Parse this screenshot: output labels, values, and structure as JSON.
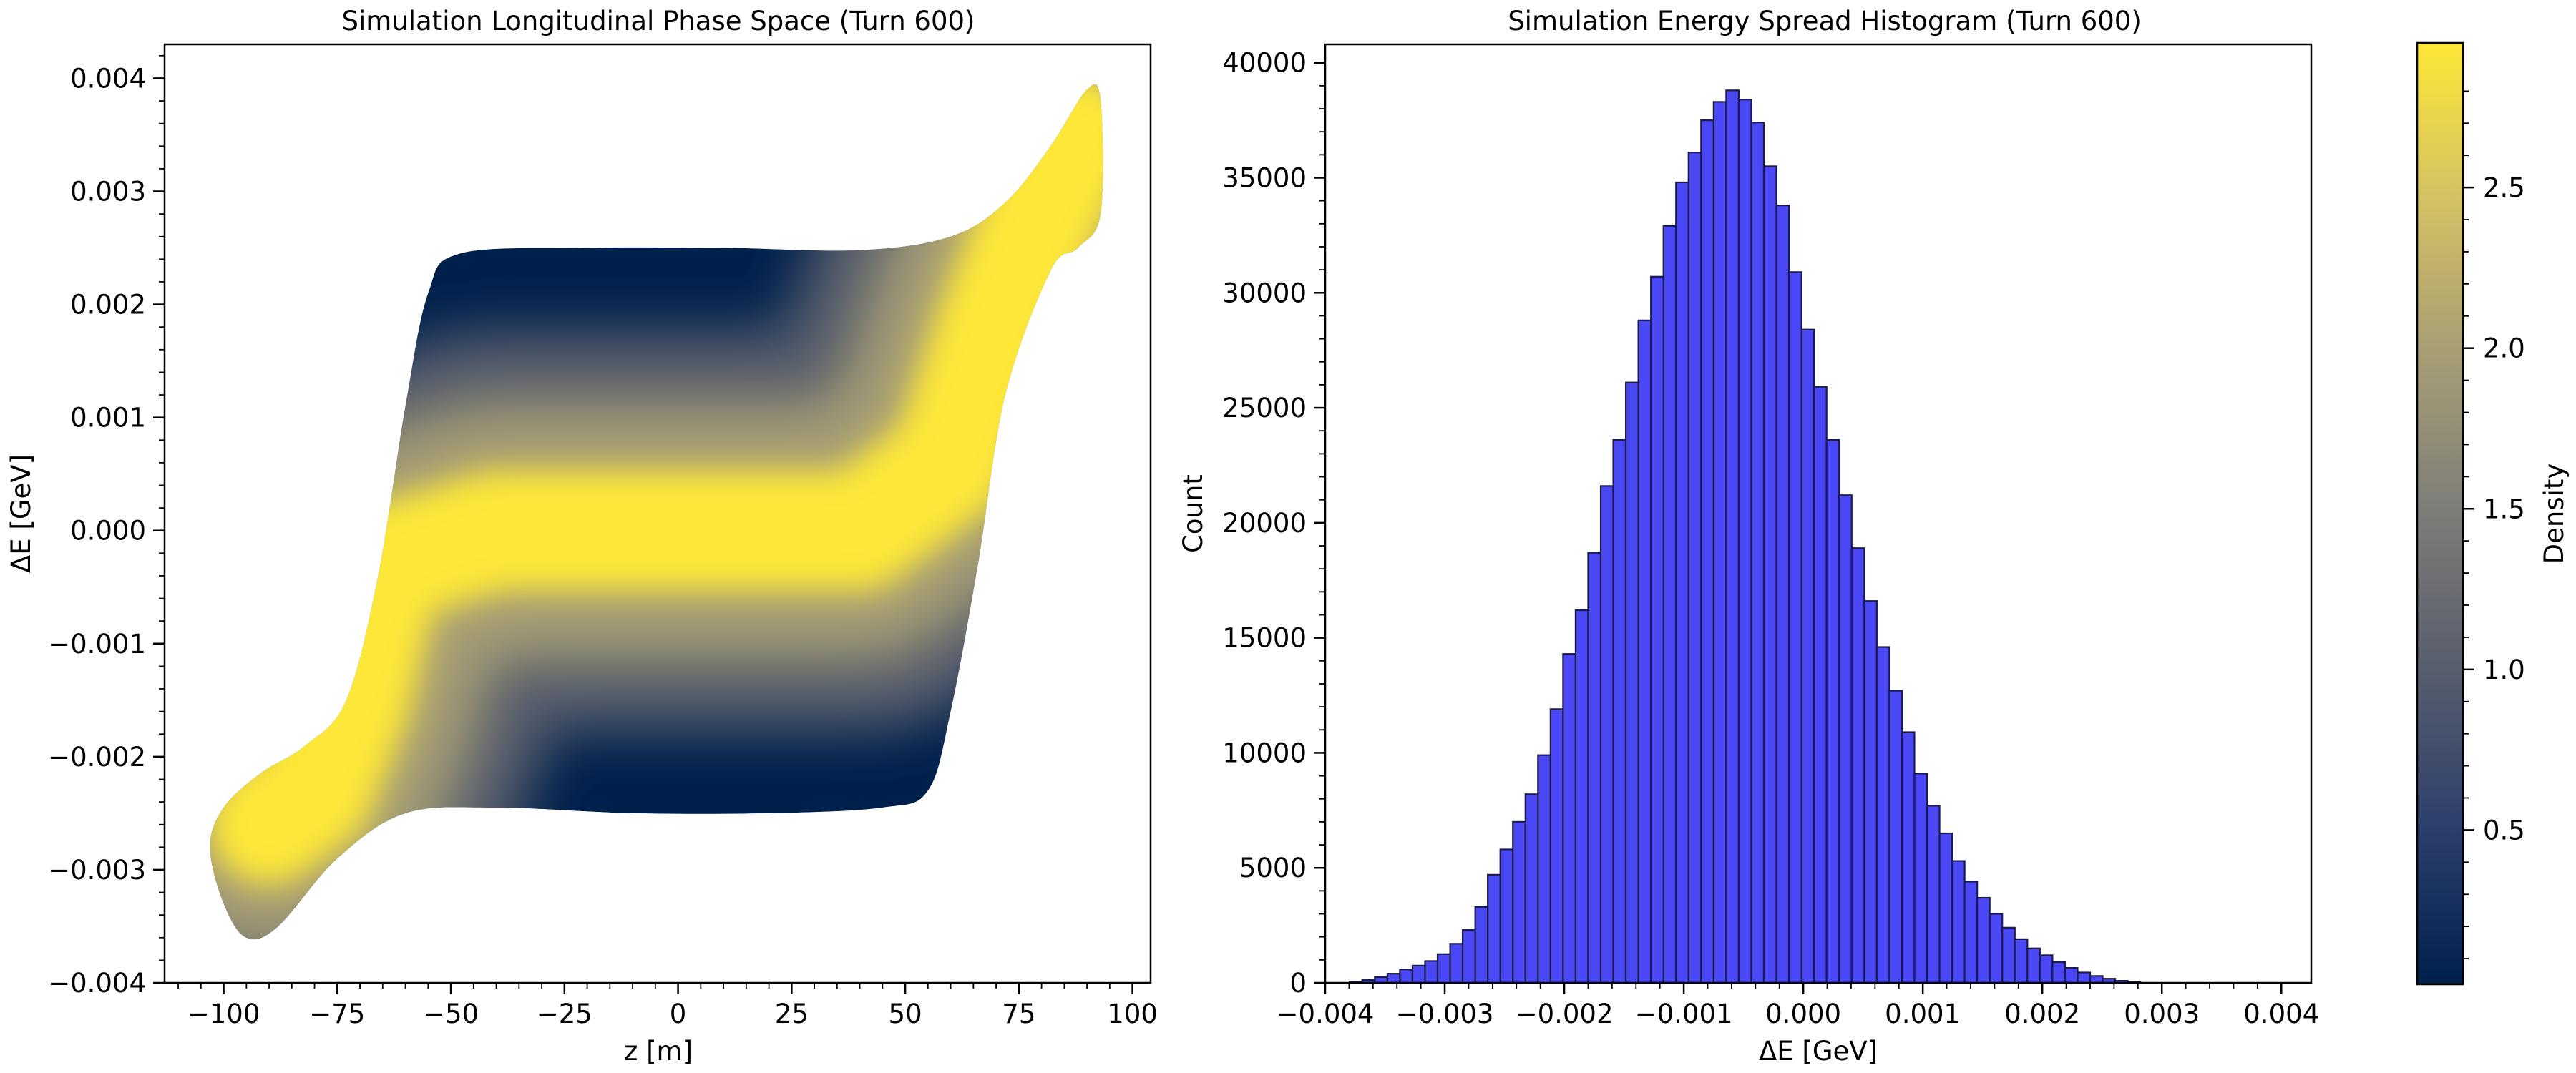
{
  "chart_data": [
    {
      "type": "scatter",
      "title": "Simulation Longitudinal Phase Space (Turn 600)",
      "xlabel": "z [m]",
      "ylabel": "ΔE [GeV]",
      "xlim": [
        -113,
        104
      ],
      "ylim": [
        -0.004,
        0.0043
      ],
      "xticks": [
        -100,
        -75,
        -50,
        -25,
        0,
        25,
        50,
        75,
        100
      ],
      "xtick_labels": [
        "−100",
        "−75",
        "−50",
        "−25",
        "0",
        "25",
        "50",
        "75",
        "100"
      ],
      "yticks": [
        -0.004,
        -0.003,
        -0.002,
        -0.001,
        0.0,
        0.001,
        0.002,
        0.003,
        0.004
      ],
      "ytick_labels": [
        "−0.004",
        "−0.003",
        "−0.002",
        "−0.001",
        "0.000",
        "0.001",
        "0.002",
        "0.003",
        "0.004"
      ],
      "distribution": {
        "description": "particle cloud colored by density",
        "upper_edge": [
          [
            -100,
            -0.00245
          ],
          [
            -92,
            -0.00215
          ],
          [
            -82,
            -0.0019
          ],
          [
            -73,
            -0.0015
          ],
          [
            -66,
            -0.0004
          ],
          [
            -60,
            0.0011
          ],
          [
            -55,
            0.0021
          ],
          [
            -48,
            0.00245
          ],
          [
            -20,
            0.0025
          ],
          [
            10,
            0.0025
          ],
          [
            40,
            0.00248
          ],
          [
            60,
            0.0026
          ],
          [
            72,
            0.0029
          ],
          [
            82,
            0.0034
          ],
          [
            90,
            0.0039
          ],
          [
            93,
            0.0038
          ]
        ],
        "lower_edge": [
          [
            93,
            0.0028
          ],
          [
            88,
            0.0025
          ],
          [
            82,
            0.0023
          ],
          [
            72,
            0.0012
          ],
          [
            66,
            -0.0003
          ],
          [
            60,
            -0.0016
          ],
          [
            55,
            -0.0023
          ],
          [
            45,
            -0.00245
          ],
          [
            20,
            -0.0025
          ],
          [
            -10,
            -0.0025
          ],
          [
            -40,
            -0.00245
          ],
          [
            -60,
            -0.0025
          ],
          [
            -75,
            -0.0029
          ],
          [
            -88,
            -0.0035
          ],
          [
            -95,
            -0.0036
          ],
          [
            -100,
            -0.0033
          ],
          [
            -103,
            -0.0028
          ]
        ],
        "core_centerline": [
          [
            -90,
            -0.0026
          ],
          [
            -80,
            -0.0023
          ],
          [
            -72,
            -0.0015
          ],
          [
            -65,
            -0.0003
          ],
          [
            -40,
            0.0
          ],
          [
            0,
            0.0
          ],
          [
            40,
            0.0
          ],
          [
            60,
            0.0006
          ],
          [
            70,
            0.0018
          ],
          [
            80,
            0.0028
          ],
          [
            88,
            0.0035
          ]
        ]
      }
    },
    {
      "type": "bar",
      "title": "Simulation Energy Spread Histogram (Turn 600)",
      "xlabel": "ΔE [GeV]",
      "ylabel": "Count",
      "xlim": [
        -0.004,
        0.00425
      ],
      "ylim": [
        0,
        40800
      ],
      "xticks": [
        -0.004,
        -0.003,
        -0.002,
        -0.001,
        0.0,
        0.001,
        0.002,
        0.003,
        0.004
      ],
      "xtick_labels": [
        "−0.004",
        "−0.003",
        "−0.002",
        "−0.001",
        "0.000",
        "0.001",
        "0.002",
        "0.003",
        "0.004"
      ],
      "yticks": [
        0,
        5000,
        10000,
        15000,
        20000,
        25000,
        30000,
        35000,
        40000
      ],
      "ytick_labels": [
        "0",
        "5000",
        "10000",
        "15000",
        "20000",
        "25000",
        "30000",
        "35000",
        "40000"
      ],
      "bin_start": -0.0039,
      "bin_width": 0.000105,
      "values": [
        0,
        50,
        120,
        250,
        400,
        580,
        750,
        950,
        1250,
        1700,
        2300,
        3300,
        4700,
        5800,
        7000,
        8200,
        9900,
        11900,
        14300,
        16200,
        18700,
        21600,
        23600,
        26100,
        28800,
        30700,
        32900,
        34800,
        36100,
        37500,
        38300,
        38800,
        38400,
        37400,
        35500,
        33800,
        30900,
        28400,
        25900,
        23600,
        21200,
        18900,
        16600,
        14600,
        12700,
        10900,
        9100,
        7700,
        6500,
        5300,
        4400,
        3700,
        3000,
        2400,
        1900,
        1500,
        1200,
        900,
        650,
        450,
        300,
        180,
        90,
        40
      ]
    },
    {
      "type": "colorbar",
      "label": "Density",
      "colormap": [
        "#00204c",
        "#2d3f6c",
        "#575d6d",
        "#7d7c78",
        "#a69d75",
        "#d3c164",
        "#fde737"
      ],
      "range": [
        0.02,
        2.95
      ],
      "ticks": [
        0.5,
        1.0,
        1.5,
        2.0,
        2.5
      ],
      "tick_labels": [
        "0.5",
        "1.0",
        "1.5",
        "2.0",
        "2.5"
      ]
    }
  ]
}
